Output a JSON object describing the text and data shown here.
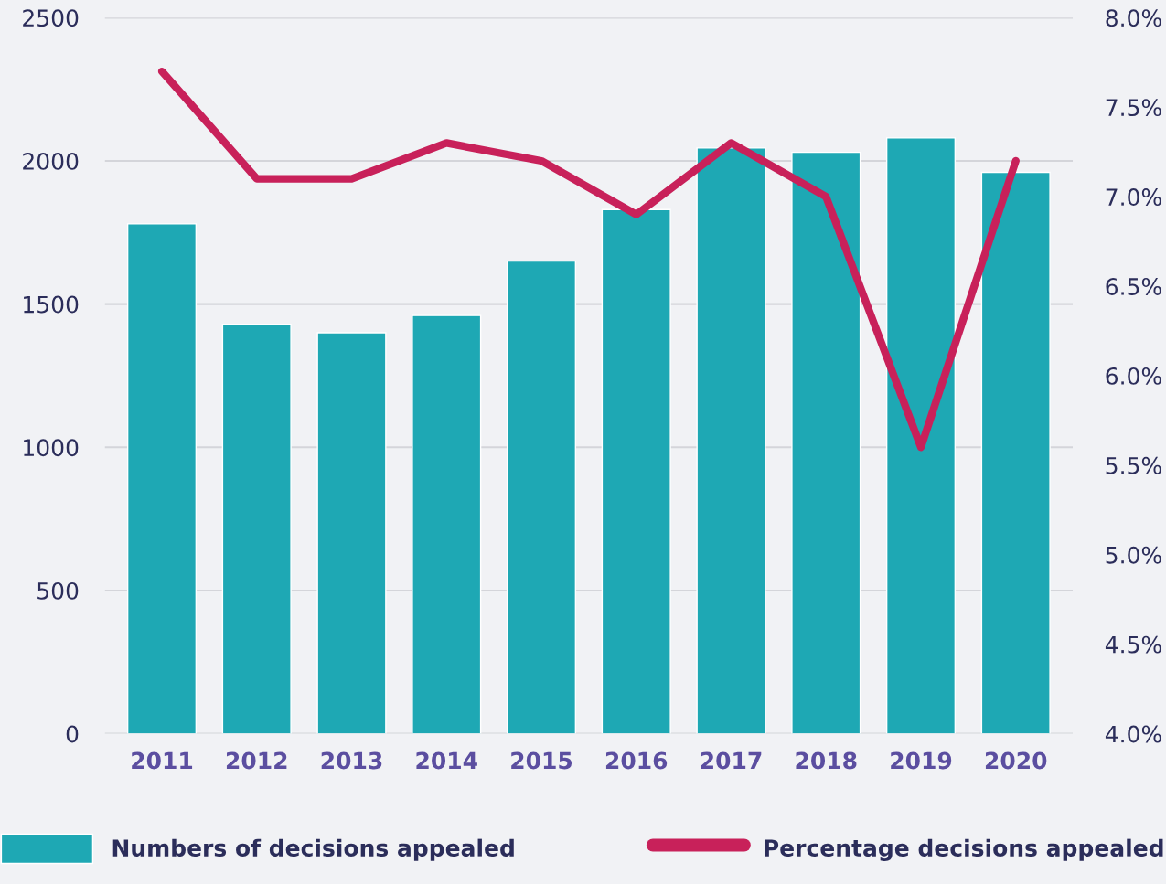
{
  "chart_data": {
    "type": "bar",
    "categories": [
      "2011",
      "2012",
      "2013",
      "2014",
      "2015",
      "2016",
      "2017",
      "2018",
      "2019",
      "2020"
    ],
    "series": [
      {
        "name": "Numbers of decisions appealed",
        "color": "#1ea8b4",
        "values": [
          1780,
          1430,
          1400,
          1460,
          1650,
          1830,
          2045,
          2030,
          2080,
          1960
        ]
      },
      {
        "name": "Percentage decisions appealed",
        "type": "line",
        "axis": "y2",
        "color": "#c8215a",
        "values": [
          7.7,
          7.1,
          7.1,
          7.3,
          7.2,
          6.9,
          7.3,
          7.0,
          5.6,
          7.2
        ]
      }
    ],
    "ylim": [
      0,
      2500
    ],
    "yticks": [
      0,
      500,
      1000,
      1500,
      2000,
      2500
    ],
    "y2lim": [
      4.0,
      8.0
    ],
    "y2ticks": [
      {
        "value": 4.0,
        "label": "4.0%"
      },
      {
        "value": 4.5,
        "label": "4.5%"
      },
      {
        "value": 5.0,
        "label": "5.0%"
      },
      {
        "value": 5.5,
        "label": "5.5%"
      },
      {
        "value": 6.0,
        "label": "6.0%"
      },
      {
        "value": 6.5,
        "label": "6.5%"
      },
      {
        "value": 7.0,
        "label": "7.0%"
      },
      {
        "value": 7.5,
        "label": "7.5%"
      },
      {
        "value": 8.0,
        "label": "8.0%"
      }
    ],
    "grid": "y",
    "legend": "bottom",
    "marker": "none",
    "line_style": "solid"
  }
}
